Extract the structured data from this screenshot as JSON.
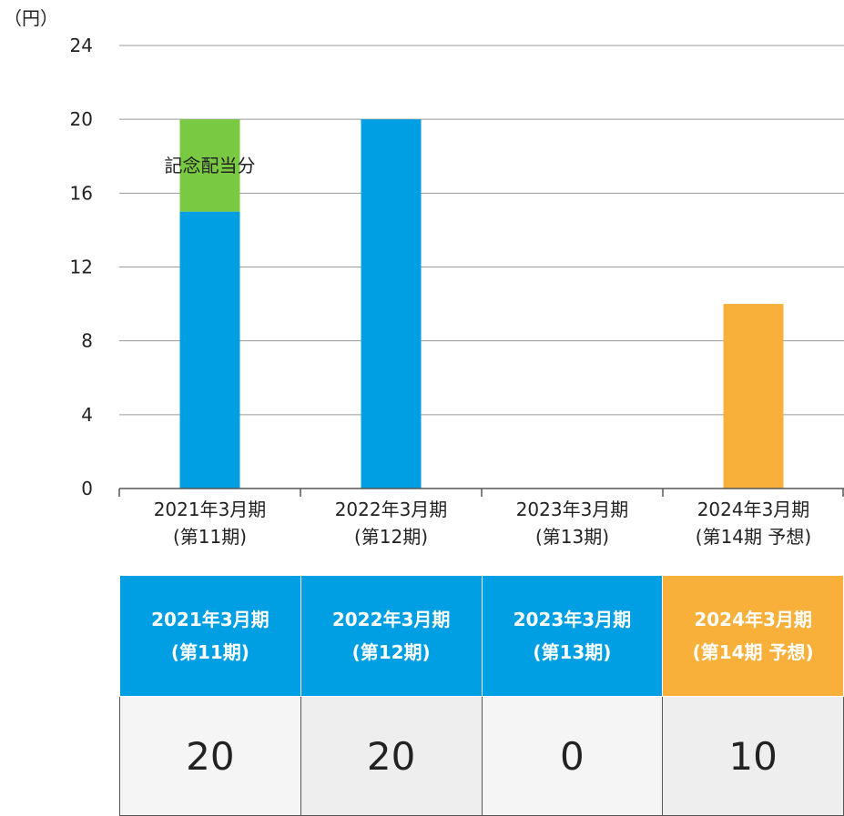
{
  "chart_data": {
    "type": "bar",
    "stacked": true,
    "unit_label": "（円）",
    "ylim": [
      0,
      24
    ],
    "yticks": [
      0,
      4,
      8,
      12,
      16,
      20,
      24
    ],
    "grid": true,
    "categories": [
      {
        "line1": "2021年3月期",
        "line2": "(第11期)"
      },
      {
        "line1": "2022年3月期",
        "line2": "(第12期)"
      },
      {
        "line1": "2023年3月期",
        "line2": "(第13期)"
      },
      {
        "line1": "2024年3月期",
        "line2": "(第14期 予想)"
      }
    ],
    "series": [
      {
        "values": [
          15,
          20,
          0,
          0
        ],
        "color": "#009fe3"
      },
      {
        "name": "記念配当分",
        "values": [
          5,
          0,
          0,
          0
        ],
        "color": "#7ac943"
      },
      {
        "values": [
          0,
          0,
          0,
          10
        ],
        "color": "#f8b03b"
      }
    ],
    "annotation": {
      "text": "記念配当分",
      "category_index": 0
    }
  },
  "table": {
    "headers": [
      {
        "line1": "2021年3月期",
        "line2": "(第11期)",
        "color": "#009fe3"
      },
      {
        "line1": "2022年3月期",
        "line2": "(第12期)",
        "color": "#009fe3"
      },
      {
        "line1": "2023年3月期",
        "line2": "(第13期)",
        "color": "#009fe3"
      },
      {
        "line1": "2024年3月期",
        "line2": "(第14期 予想)",
        "color": "#f8b03b"
      }
    ],
    "values": [
      "20",
      "20",
      "0",
      "10"
    ],
    "cell_backgrounds": [
      "#f5f5f5",
      "#eeeeee",
      "#f5f5f5",
      "#eeeeee"
    ]
  },
  "colors": {
    "grid": "#999999",
    "axis": "#555555",
    "base_dividend": "#009fe3",
    "commemorative_dividend": "#7ac943",
    "forecast": "#f8b03b"
  }
}
